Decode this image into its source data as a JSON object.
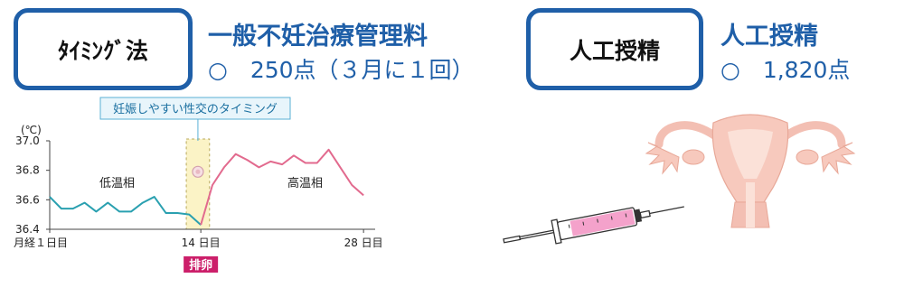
{
  "timing": {
    "box_label": "ﾀｲﾐﾝｸﾞ法",
    "fee_title": "一般不妊治療管理料",
    "fee_detail": "○　250点（３月に１回）"
  },
  "insemination": {
    "box_label": "人工授精",
    "fee_title": "人工授精",
    "fee_detail": "○　1,820点"
  },
  "chart_data": {
    "type": "line",
    "callout": "妊娠しやすい性交のタイミング",
    "ylabel": "(℃)",
    "ylim": [
      36.4,
      37.0
    ],
    "yticks": [
      "37.0",
      "36.8",
      "36.6",
      "36.4"
    ],
    "xticks": [
      {
        "day": 1,
        "label": "月経１日目"
      },
      {
        "day": 14,
        "label": "14 日目"
      },
      {
        "day": 28,
        "label": "28 日目"
      }
    ],
    "low_phase_label": "低温相",
    "high_phase_label": "高温相",
    "ovulation_label": "排卵",
    "colors": {
      "low": "#2aa0b0",
      "high": "#e26a8e",
      "window": "#fbf3c6",
      "badge": "#cc1f6a"
    },
    "series": [
      {
        "values": [
          {
            "x": 0,
            "y": 36.62
          },
          {
            "x": 1,
            "y": 36.54
          },
          {
            "x": 2,
            "y": 36.54
          },
          {
            "x": 3,
            "y": 36.58
          },
          {
            "x": 4,
            "y": 36.52
          },
          {
            "x": 5,
            "y": 36.58
          },
          {
            "x": 6,
            "y": 36.52
          },
          {
            "x": 7,
            "y": 36.52
          },
          {
            "x": 8,
            "y": 36.58
          },
          {
            "x": 9,
            "y": 36.62
          },
          {
            "x": 10,
            "y": 36.51
          },
          {
            "x": 11,
            "y": 36.51
          },
          {
            "x": 12,
            "y": 36.5
          },
          {
            "x": 13,
            "y": 36.43
          }
        ]
      },
      {
        "values": [
          {
            "x": 13,
            "y": 36.43
          },
          {
            "x": 14,
            "y": 36.7
          },
          {
            "x": 15,
            "y": 36.82
          },
          {
            "x": 16,
            "y": 36.91
          },
          {
            "x": 17,
            "y": 36.87
          },
          {
            "x": 18,
            "y": 36.82
          },
          {
            "x": 19,
            "y": 36.86
          },
          {
            "x": 20,
            "y": 36.84
          },
          {
            "x": 21,
            "y": 36.9
          },
          {
            "x": 22,
            "y": 36.85
          },
          {
            "x": 23,
            "y": 36.85
          },
          {
            "x": 24,
            "y": 36.94
          },
          {
            "x": 25,
            "y": 36.82
          },
          {
            "x": 26,
            "y": 36.7
          },
          {
            "x": 27,
            "y": 36.63
          }
        ]
      }
    ],
    "fertile_window": [
      12,
      14
    ],
    "egg_day": 13
  }
}
